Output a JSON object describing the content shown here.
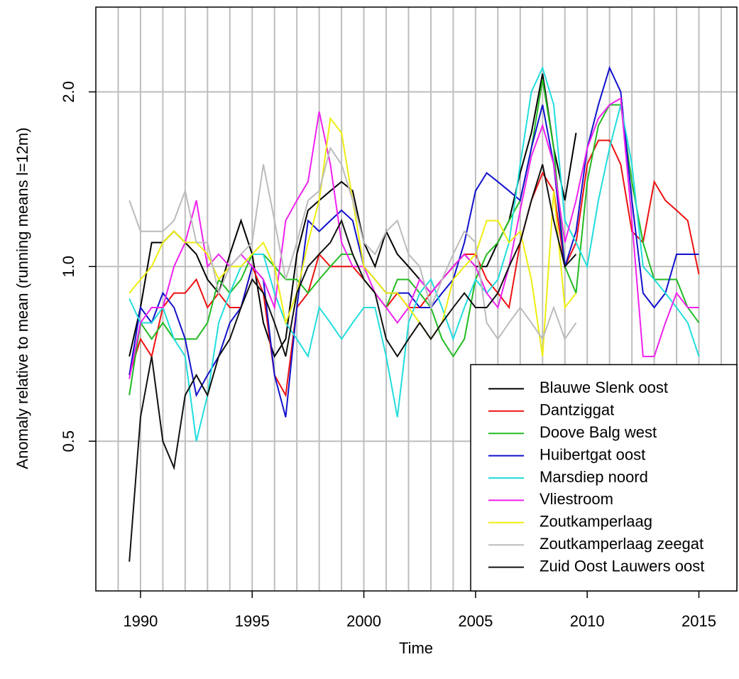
{
  "chart_data": {
    "type": "line",
    "xlabel": "Time",
    "ylabel": "Anomaly relative to mean (running means l=12m)",
    "ylog": true,
    "grid": true,
    "legend": "bottom-right",
    "xlim": [
      1988,
      2016.7
    ],
    "ylim": [
      0.276,
      2.8
    ],
    "xticks": [
      1990,
      1995,
      2000,
      2005,
      2010,
      2015
    ],
    "yticks": [
      0.5,
      {
        "value": 1,
        "label": "1.0"
      },
      {
        "value": 2,
        "label": "2.0"
      }
    ],
    "xgrid": [
      1989,
      1990,
      1991,
      1992,
      1993,
      1994,
      1995,
      1996,
      1997,
      1998,
      1999,
      2000,
      2001,
      2002,
      2003,
      2004,
      2005,
      2006,
      2007,
      2008,
      2009,
      2010,
      2011,
      2012,
      2013,
      2014,
      2015,
      2016
    ],
    "x": [
      1989.5,
      1990,
      1990.5,
      1991,
      1991.5,
      1992,
      1992.5,
      1993,
      1993.5,
      1994,
      1994.5,
      1995,
      1995.5,
      1996,
      1996.5,
      1997,
      1997.5,
      1998,
      1998.5,
      1999,
      1999.5,
      2000,
      2000.5,
      2001,
      2001.5,
      2002,
      2002.5,
      2003,
      2003.5,
      2004,
      2004.5,
      2005,
      2005.5,
      2006,
      2006.5,
      2007,
      2007.5,
      2008,
      2008.5,
      2009,
      2009.5,
      2010,
      2010.5,
      2011,
      2011.5,
      2012,
      2012.5,
      2013,
      2013.5,
      2014,
      2014.5,
      2015
    ],
    "series": [
      {
        "name": "Blauwe Slenk oost",
        "color": "#000000",
        "values": [
          0.7,
          0.85,
          1.1,
          1.1,
          1.15,
          1.1,
          1.05,
          0.95,
          0.9,
          1.05,
          1.2,
          1.05,
          0.8,
          0.7,
          0.75,
          1.05,
          1.25,
          1.3,
          1.35,
          1.4,
          1.35,
          1.1,
          1.0,
          1.15,
          1.05,
          1.0,
          0.95,
          0.9,
          0.95,
          1.0,
          1.05,
          1.0,
          1.0,
          1.1,
          1.2,
          1.45,
          1.7,
          2.15,
          1.6,
          1.3,
          1.7,
          null,
          null,
          null,
          null,
          null,
          null,
          null,
          null,
          null,
          null,
          null
        ]
      },
      {
        "name": "Dantziggat",
        "color": "#ee1111",
        "values": [
          0.65,
          0.75,
          0.7,
          0.85,
          0.9,
          0.9,
          0.95,
          0.85,
          0.9,
          0.85,
          0.85,
          1.0,
          0.9,
          0.65,
          0.6,
          0.85,
          0.9,
          1.05,
          1.0,
          1.0,
          1.0,
          0.95,
          0.9,
          0.85,
          0.9,
          0.85,
          0.85,
          0.9,
          0.95,
          1.0,
          1.05,
          1.05,
          0.95,
          0.9,
          0.85,
          1.1,
          1.3,
          1.45,
          1.35,
          1.0,
          1.1,
          1.5,
          1.65,
          1.65,
          1.5,
          1.15,
          1.1,
          1.4,
          1.3,
          1.25,
          1.2,
          0.97
        ]
      },
      {
        "name": "Doove Balg west",
        "color": "#22bb22",
        "values": [
          0.6,
          0.8,
          0.75,
          0.8,
          0.75,
          0.75,
          0.75,
          0.8,
          0.95,
          0.9,
          0.95,
          1.05,
          1.05,
          1.0,
          0.95,
          0.95,
          0.9,
          0.95,
          1.0,
          1.05,
          1.05,
          0.95,
          0.9,
          0.85,
          0.95,
          0.95,
          0.9,
          0.85,
          0.75,
          0.7,
          0.75,
          0.95,
          1.05,
          1.1,
          1.2,
          1.3,
          1.6,
          2.1,
          1.6,
          1.0,
          0.9,
          1.4,
          1.75,
          1.9,
          1.9,
          1.4,
          1.1,
          0.95,
          0.95,
          0.95,
          0.85,
          0.8
        ]
      },
      {
        "name": "Huibertgat oost",
        "color": "#1111cc",
        "values": [
          0.65,
          0.85,
          0.8,
          0.9,
          0.85,
          0.75,
          0.6,
          0.65,
          0.7,
          0.8,
          0.85,
          1.0,
          0.95,
          0.65,
          0.55,
          0.85,
          1.2,
          1.15,
          1.2,
          1.25,
          1.2,
          1.0,
          0.95,
          0.9,
          0.9,
          0.9,
          0.85,
          0.85,
          0.9,
          0.95,
          1.1,
          1.35,
          1.45,
          1.4,
          1.35,
          1.3,
          1.6,
          1.9,
          1.5,
          1.0,
          1.15,
          1.6,
          1.9,
          2.2,
          2.0,
          1.3,
          0.9,
          0.85,
          0.9,
          1.05,
          1.05,
          1.05
        ]
      },
      {
        "name": "Marsdiep noord",
        "color": "#22dddd",
        "values": [
          0.88,
          0.8,
          0.8,
          0.85,
          0.75,
          0.7,
          0.5,
          0.6,
          0.8,
          0.9,
          1.0,
          1.05,
          1.05,
          0.9,
          0.8,
          0.75,
          0.7,
          0.85,
          0.8,
          0.75,
          0.8,
          0.85,
          0.85,
          0.7,
          0.55,
          0.8,
          0.9,
          0.95,
          0.85,
          0.75,
          0.85,
          0.95,
          0.9,
          0.95,
          1.1,
          1.5,
          2.0,
          2.2,
          1.9,
          1.2,
          1.1,
          1.0,
          1.3,
          1.6,
          1.9,
          1.5,
          1.0,
          0.95,
          0.9,
          0.85,
          0.8,
          0.7
        ]
      },
      {
        "name": "Vliestroom",
        "color": "#ee22ee",
        "values": [
          0.64,
          0.8,
          0.85,
          0.85,
          1.0,
          1.1,
          1.3,
          1.0,
          1.05,
          1.0,
          1.05,
          1.0,
          0.95,
          0.85,
          1.2,
          1.3,
          1.4,
          1.85,
          1.5,
          1.1,
          1.0,
          1.0,
          0.9,
          0.85,
          0.8,
          0.85,
          0.95,
          0.9,
          0.95,
          1.0,
          1.05,
          1.0,
          0.9,
          0.85,
          1.0,
          1.25,
          1.55,
          1.75,
          1.5,
          1.1,
          1.3,
          1.6,
          1.8,
          1.9,
          1.95,
          1.2,
          0.7,
          0.7,
          0.8,
          0.9,
          0.85,
          0.85
        ]
      },
      {
        "name": "Zoutkamperlaag",
        "color": "#eeee11",
        "values": [
          0.9,
          0.95,
          1.0,
          1.1,
          1.15,
          1.1,
          1.1,
          1.05,
          0.95,
          1.0,
          1.0,
          1.05,
          1.1,
          1.0,
          0.8,
          0.9,
          1.1,
          1.3,
          1.8,
          1.7,
          1.3,
          1.0,
          0.95,
          0.9,
          0.9,
          0.85,
          0.8,
          0.75,
          0.8,
          0.95,
          1.0,
          1.05,
          1.2,
          1.2,
          1.1,
          1.15,
          0.95,
          0.7,
          1.35,
          0.85,
          0.9,
          null,
          null,
          null,
          null,
          null,
          null,
          null,
          null,
          null,
          null,
          null
        ]
      },
      {
        "name": "Zoutkamperlaag zeegat",
        "color": "#bbbbbb",
        "values": [
          1.3,
          1.15,
          1.15,
          1.15,
          1.2,
          1.35,
          1.1,
          1.1,
          0.9,
          1.0,
          1.05,
          1.1,
          1.5,
          1.2,
          0.95,
          1.1,
          1.3,
          1.35,
          1.6,
          1.5,
          1.3,
          1.1,
          1.05,
          1.15,
          1.2,
          1.05,
          1.0,
          0.85,
          0.95,
          1.05,
          1.15,
          1.1,
          0.8,
          0.75,
          0.8,
          0.85,
          0.8,
          0.75,
          0.85,
          0.75,
          0.8,
          null,
          null,
          null,
          null,
          null,
          null,
          null,
          null,
          null,
          null,
          null
        ]
      },
      {
        "name": "Zuid Oost Lauwers oost",
        "color": "#111111",
        "values": [
          0.31,
          0.55,
          0.7,
          0.5,
          0.45,
          0.6,
          0.65,
          0.6,
          0.7,
          0.75,
          0.85,
          0.95,
          0.9,
          0.8,
          0.7,
          0.9,
          1.0,
          1.05,
          1.1,
          1.2,
          1.05,
          0.95,
          0.9,
          0.75,
          0.7,
          0.75,
          0.8,
          0.75,
          0.8,
          0.85,
          0.9,
          0.85,
          0.85,
          0.9,
          1.0,
          1.1,
          1.3,
          1.5,
          1.2,
          1.0,
          1.05,
          null,
          null,
          null,
          null,
          null,
          null,
          null,
          null,
          null,
          null,
          null
        ]
      }
    ]
  }
}
